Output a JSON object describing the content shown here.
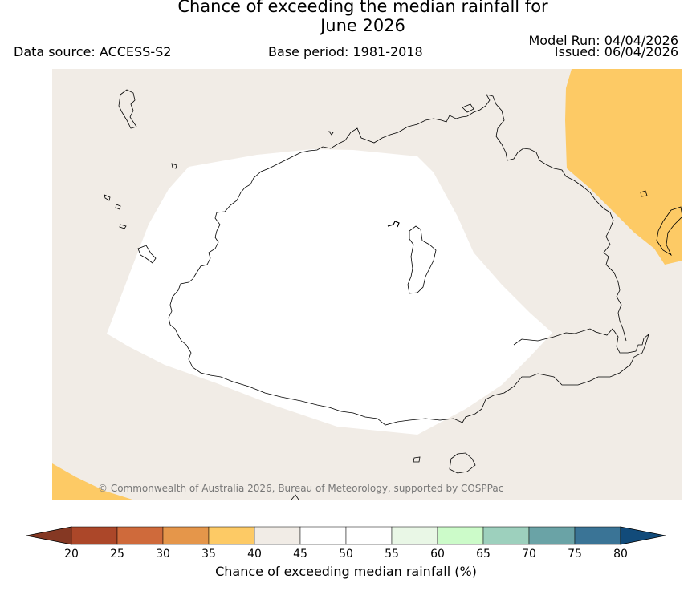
{
  "header": {
    "title_line1": "Chance of exceeding the median rainfall for",
    "title_line2": "June 2026",
    "data_source": "Data source: ACCESS-S2",
    "base_period": "Base period: 1981-2018",
    "model_run": "Model Run: 04/04/2026",
    "issued": "Issued: 06/04/2026"
  },
  "map": {
    "copyright": "© Commonwealth of Australia 2026, Bureau of Meteorology, supported by COSPPac",
    "colors": {
      "above_40_45": "#f1ece6",
      "band_45_55": "#ffffff",
      "band_35_40": "#fdca65",
      "coastline": "#000000"
    }
  },
  "legend": {
    "label": "Chance of exceeding median rainfall (%)",
    "ticks": [
      "20",
      "25",
      "30",
      "35",
      "40",
      "45",
      "50",
      "55",
      "60",
      "65",
      "70",
      "75",
      "80"
    ],
    "colors": [
      "#ac4729",
      "#cf6a3b",
      "#e5964a",
      "#fdca65",
      "#f1ece6",
      "#ffffff",
      "#ffffff",
      "#e9f7e6",
      "#ccfbc9",
      "#9dd0bd",
      "#6aa3a6",
      "#3a7496"
    ],
    "under_color": "#853823",
    "over_color": "#124b7a"
  }
}
